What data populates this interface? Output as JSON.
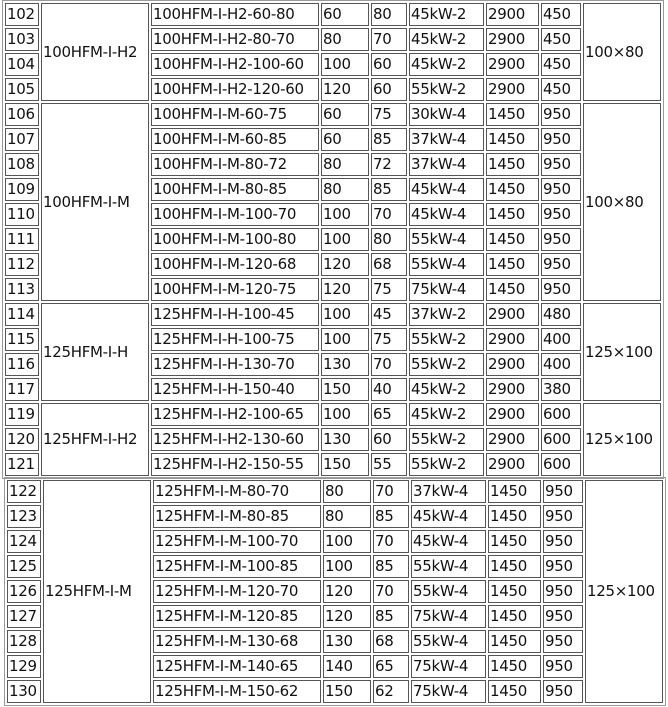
{
  "tables": [
    {
      "groups": [
        {
          "series": "100HFM-I-H2",
          "outlet": "100×80",
          "rows": [
            [
              "102",
              "100HFM-I-H2-60-80",
              "60",
              "80",
              "45kW-2",
              "2900",
              "450"
            ],
            [
              "103",
              "100HFM-I-H2-80-70",
              "80",
              "70",
              "45kW-2",
              "2900",
              "450"
            ],
            [
              "104",
              "100HFM-I-H2-100-60",
              "100",
              "60",
              "45kW-2",
              "2900",
              "450"
            ],
            [
              "105",
              "100HFM-I-H2-120-60",
              "120",
              "60",
              "55kW-2",
              "2900",
              "450"
            ]
          ]
        },
        {
          "series": "100HFM-I-M",
          "outlet": "100×80",
          "rows": [
            [
              "106",
              "100HFM-I-M-60-75",
              "60",
              "75",
              "30kW-4",
              "1450",
              "950"
            ],
            [
              "107",
              "100HFM-I-M-60-85",
              "60",
              "85",
              "37kW-4",
              "1450",
              "950"
            ],
            [
              "108",
              "100HFM-I-M-80-72",
              "80",
              "72",
              "37kW-4",
              "1450",
              "950"
            ],
            [
              "109",
              "100HFM-I-M-80-85",
              "80",
              "85",
              "45kW-4",
              "1450",
              "950"
            ],
            [
              "110",
              "100HFM-I-M-100-70",
              "100",
              "70",
              "45kW-4",
              "1450",
              "950"
            ],
            [
              "111",
              "100HFM-I-M-100-80",
              "100",
              "80",
              "55kW-4",
              "1450",
              "950"
            ],
            [
              "112",
              "100HFM-I-M-120-68",
              "120",
              "68",
              "55kW-4",
              "1450",
              "950"
            ],
            [
              "113",
              "100HFM-I-M-120-75",
              "120",
              "75",
              "75kW-4",
              "1450",
              "950"
            ]
          ]
        },
        {
          "series": "125HFM-I-H",
          "outlet": "125×100",
          "rows": [
            [
              "114",
              "125HFM-I-H-100-45",
              "100",
              "45",
              "37kW-2",
              "2900",
              "480"
            ],
            [
              "115",
              "125HFM-I-H-100-75",
              "100",
              "75",
              "55kW-2",
              "2900",
              "400"
            ],
            [
              "116",
              "125HFM-I-H-130-70",
              "130",
              "70",
              "55kW-2",
              "2900",
              "400"
            ],
            [
              "117",
              "125HFM-I-H-150-40",
              "150",
              "40",
              "45kW-2",
              "2900",
              "380"
            ]
          ]
        },
        {
          "series": "125HFM-I-H2",
          "outlet": "125×100",
          "rows": [
            [
              "119",
              "125HFM-I-H2-100-65",
              "100",
              "65",
              "45kW-2",
              "2900",
              "600"
            ],
            [
              "120",
              "125HFM-I-H2-130-60",
              "130",
              "60",
              "55kW-2",
              "2900",
              "600"
            ],
            [
              "121",
              "125HFM-I-H2-150-55",
              "150",
              "55",
              "55kW-2",
              "2900",
              "600"
            ]
          ]
        }
      ]
    },
    {
      "groups": [
        {
          "series": "125HFM-I-M",
          "outlet": "125×100",
          "rows": [
            [
              "122",
              "125HFM-I-M-80-70",
              "80",
              "70",
              "37kW-4",
              "1450",
              "950"
            ],
            [
              "123",
              "125HFM-I-M-80-85",
              "80",
              "85",
              "45kW-4",
              "1450",
              "950"
            ],
            [
              "124",
              "125HFM-I-M-100-70",
              "100",
              "70",
              "45kW-4",
              "1450",
              "950"
            ],
            [
              "125",
              "125HFM-I-M-100-85",
              "100",
              "85",
              "55kW-4",
              "1450",
              "950"
            ],
            [
              "126",
              "125HFM-I-M-120-70",
              "120",
              "70",
              "55kW-4",
              "1450",
              "950"
            ],
            [
              "127",
              "125HFM-I-M-120-85",
              "120",
              "85",
              "75kW-4",
              "1450",
              "950"
            ],
            [
              "128",
              "125HFM-I-M-130-68",
              "130",
              "68",
              "55kW-4",
              "1450",
              "950"
            ],
            [
              "129",
              "125HFM-I-M-140-65",
              "140",
              "65",
              "75kW-4",
              "1450",
              "950"
            ],
            [
              "130",
              "125HFM-I-M-150-62",
              "150",
              "62",
              "75kW-4",
              "1450",
              "950"
            ]
          ]
        }
      ]
    }
  ]
}
